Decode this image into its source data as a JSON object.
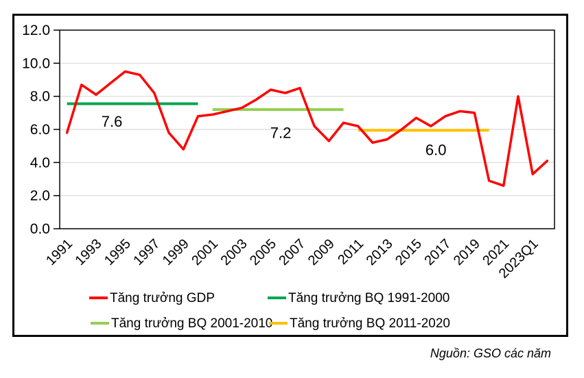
{
  "chart_data": {
    "type": "line",
    "x_tick_labels": [
      "1991",
      "1993",
      "1995",
      "1997",
      "1999",
      "2001",
      "2003",
      "2005",
      "2007",
      "2009",
      "2011",
      "2013",
      "2015",
      "2017",
      "2019",
      "2021",
      "2023Q1"
    ],
    "categories": [
      "1991",
      "1992",
      "1993",
      "1994",
      "1995",
      "1996",
      "1997",
      "1998",
      "1999",
      "2000",
      "2001",
      "2002",
      "2003",
      "2004",
      "2005",
      "2006",
      "2007",
      "2008",
      "2009",
      "2010",
      "2011",
      "2012",
      "2013",
      "2014",
      "2015",
      "2016",
      "2017",
      "2018",
      "2019",
      "2020",
      "2021",
      "2022",
      "2023Q1",
      ""
    ],
    "series": [
      {
        "name": "Tăng trưởng GDP",
        "color": "#FF0000",
        "values": [
          5.8,
          8.7,
          8.1,
          8.8,
          9.5,
          9.3,
          8.2,
          5.8,
          4.8,
          6.8,
          6.9,
          7.1,
          7.3,
          7.8,
          8.4,
          8.2,
          8.5,
          6.2,
          5.3,
          6.4,
          6.2,
          5.2,
          5.4,
          6.0,
          6.7,
          6.2,
          6.8,
          7.1,
          7.0,
          2.9,
          2.6,
          8.0,
          3.3,
          4.1
        ]
      }
    ],
    "average_segments": [
      {
        "name": "Tăng trưởng BQ 1991-2000",
        "label": "7.6",
        "value": 7.55,
        "start_index": 0,
        "end_index": 9,
        "color": "#00A550"
      },
      {
        "name": "Tăng trưởng BQ 2001-2010",
        "label": "7.2",
        "value": 7.2,
        "start_index": 10,
        "end_index": 19,
        "color": "#92D050"
      },
      {
        "name": "Tăng trưởng BQ 2011-2020",
        "label": "6.0",
        "value": 5.95,
        "start_index": 20,
        "end_index": 29,
        "color": "#FFC000"
      }
    ],
    "ylim": [
      0,
      12
    ],
    "y_tick_step": 2,
    "y_tick_labels": [
      "0.0",
      "2.0",
      "4.0",
      "6.0",
      "8.0",
      "10.0",
      "12.0"
    ],
    "grid": "horizontal",
    "legend_position": "bottom"
  },
  "legend": {
    "items": [
      {
        "label": "Tăng trưởng GDP",
        "color": "#FF0000"
      },
      {
        "label": "Tăng trưởng BQ 1991-2000",
        "color": "#00A550"
      },
      {
        "label": "Tăng trưởng BQ 2001-2010",
        "color": "#92D050"
      },
      {
        "label": "Tăng trưởng BQ 2011-2020",
        "color": "#FFC000"
      }
    ]
  },
  "source_note": "Nguồn: GSO các năm",
  "colors": {
    "gdp_line": "#FF0000",
    "avg_1991_2000": "#00A550",
    "avg_2001_2010": "#92D050",
    "avg_2011_2020": "#FFC000",
    "gridline": "#D9D9D9",
    "axis": "#000000"
  }
}
